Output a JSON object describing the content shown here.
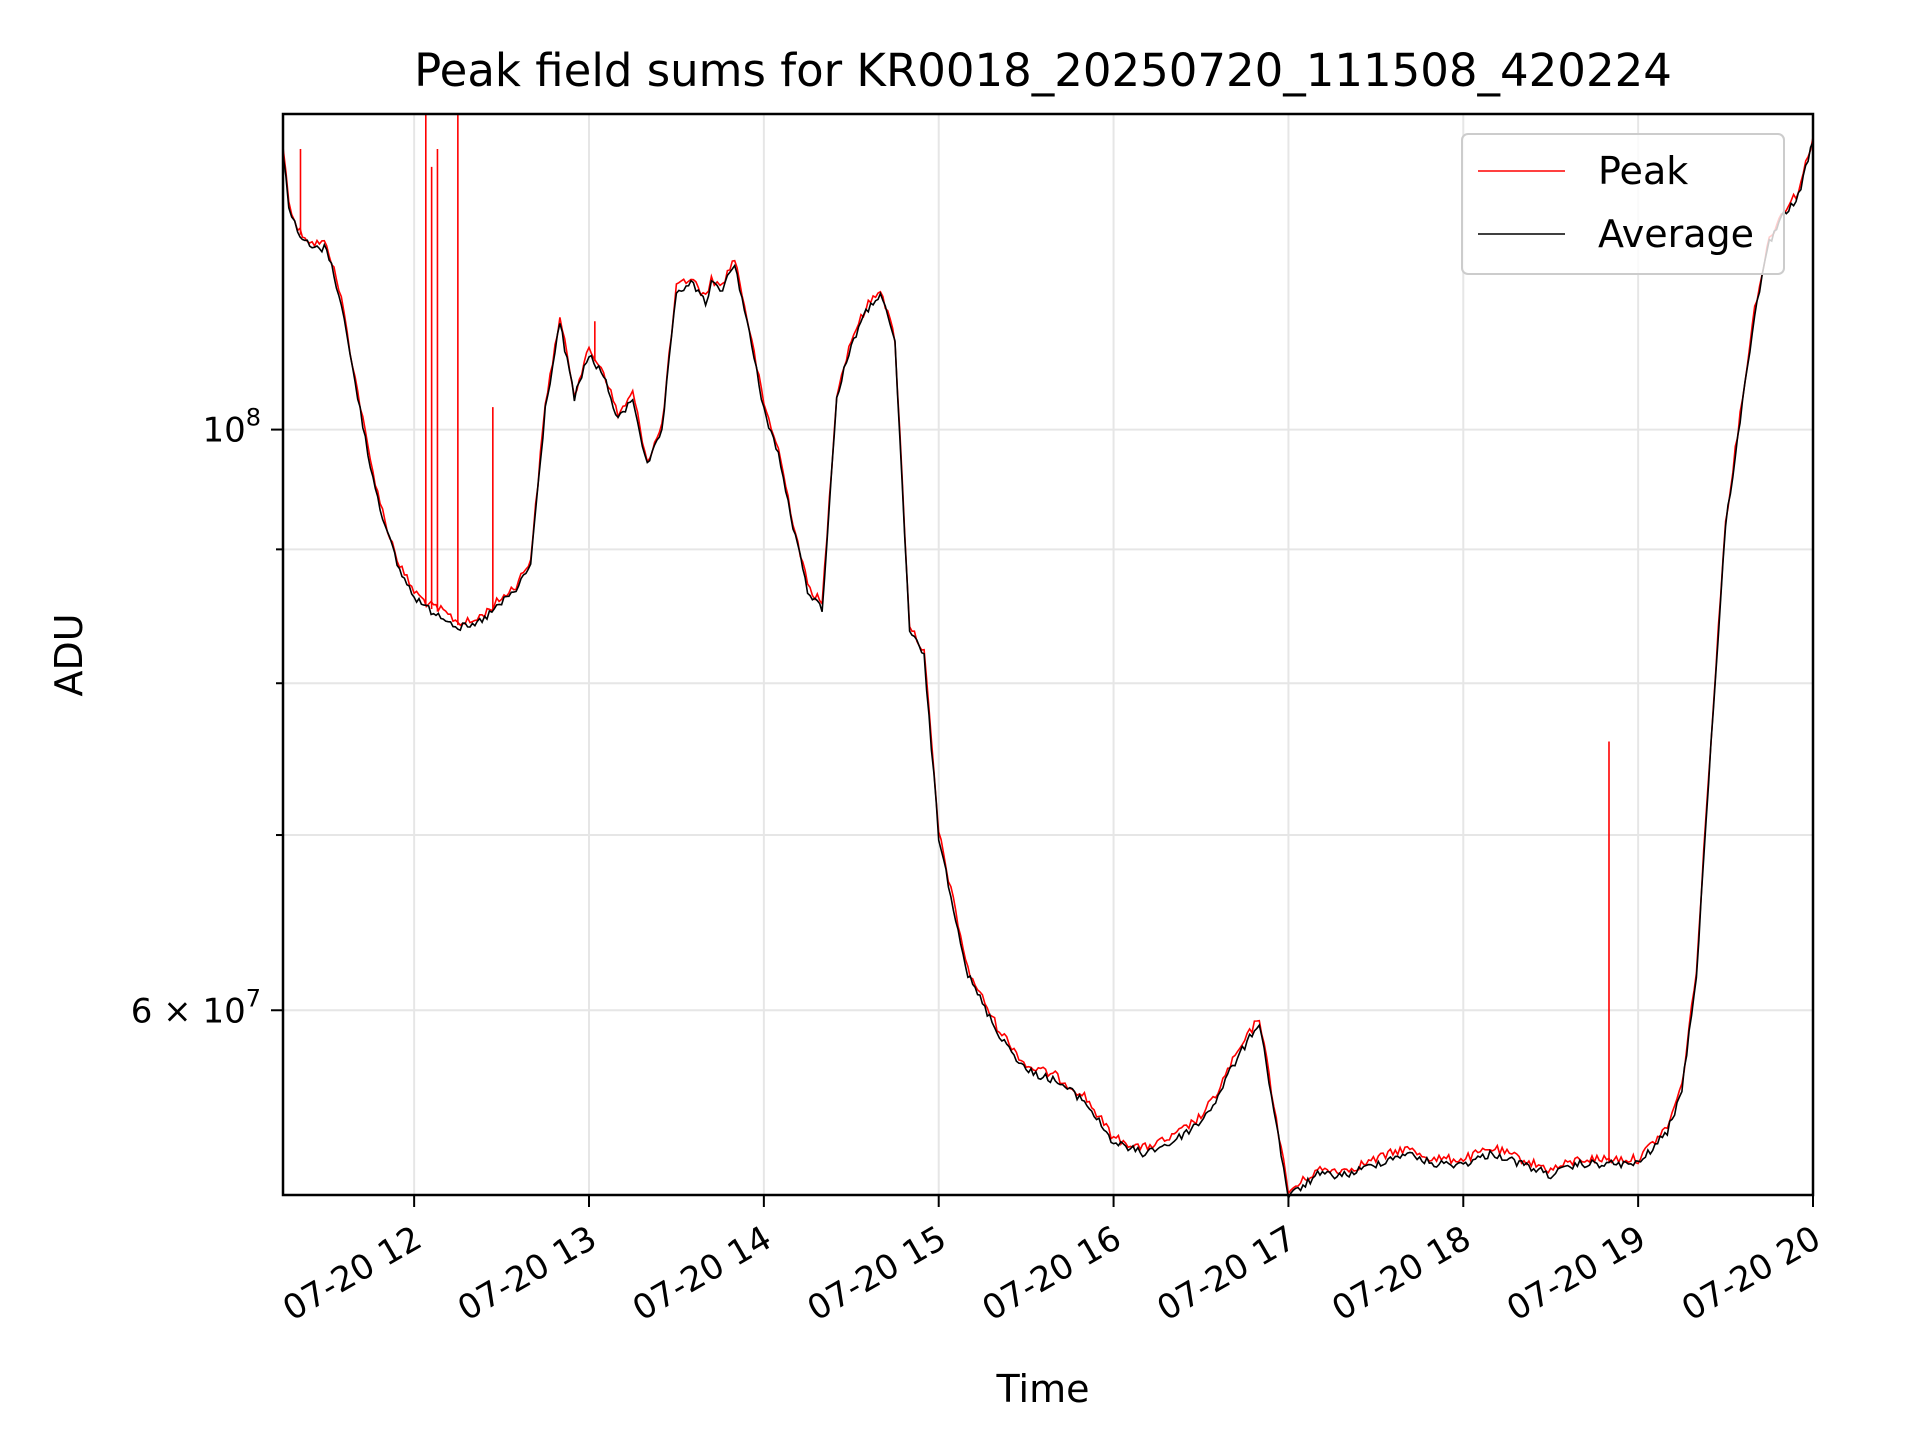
{
  "chart_data": {
    "type": "line",
    "title": "Peak field sums for KR0018_20250720_111508_420224",
    "xlabel": "Time",
    "ylabel": "ADU",
    "yscale": "log",
    "xlim": [
      "2025-07-20 11:15",
      "2025-07-20 20:00"
    ],
    "ylim": [
      51000000,
      132000000
    ],
    "grid": true,
    "legend_position": "top-right",
    "x_ticks": [
      {
        "value": "2025-07-20 12:00",
        "label": "07-20 12"
      },
      {
        "value": "2025-07-20 13:00",
        "label": "07-20 13"
      },
      {
        "value": "2025-07-20 14:00",
        "label": "07-20 14"
      },
      {
        "value": "2025-07-20 15:00",
        "label": "07-20 15"
      },
      {
        "value": "2025-07-20 16:00",
        "label": "07-20 16"
      },
      {
        "value": "2025-07-20 17:00",
        "label": "07-20 17"
      },
      {
        "value": "2025-07-20 18:00",
        "label": "07-20 18"
      },
      {
        "value": "2025-07-20 19:00",
        "label": "07-20 19"
      },
      {
        "value": "2025-07-20 20:00",
        "label": "07-20 20"
      }
    ],
    "y_ticks_major": [
      {
        "value": 100000000,
        "label_base": "10",
        "label_exp": "8"
      },
      {
        "value": 60000000,
        "label_base": "6 × 10",
        "label_exp": "7"
      }
    ],
    "y_ticks_minor": [
      70000000,
      80000000,
      90000000
    ],
    "series": [
      {
        "name": "Average",
        "color": "#000000",
        "x": [
          "2025-07-20 11:15",
          "2025-07-20 11:17",
          "2025-07-20 11:20",
          "2025-07-20 11:25",
          "2025-07-20 11:30",
          "2025-07-20 11:35",
          "2025-07-20 11:38",
          "2025-07-20 11:45",
          "2025-07-20 11:50",
          "2025-07-20 11:55",
          "2025-07-20 12:00",
          "2025-07-20 12:05",
          "2025-07-20 12:10",
          "2025-07-20 12:15",
          "2025-07-20 12:20",
          "2025-07-20 12:25",
          "2025-07-20 12:30",
          "2025-07-20 12:35",
          "2025-07-20 12:40",
          "2025-07-20 12:45",
          "2025-07-20 12:50",
          "2025-07-20 12:55",
          "2025-07-20 13:00",
          "2025-07-20 13:05",
          "2025-07-20 13:10",
          "2025-07-20 13:15",
          "2025-07-20 13:20",
          "2025-07-20 13:25",
          "2025-07-20 13:30",
          "2025-07-20 13:35",
          "2025-07-20 13:40",
          "2025-07-20 13:42",
          "2025-07-20 13:45",
          "2025-07-20 13:50",
          "2025-07-20 13:55",
          "2025-07-20 14:00",
          "2025-07-20 14:05",
          "2025-07-20 14:10",
          "2025-07-20 14:15",
          "2025-07-20 14:20",
          "2025-07-20 14:25",
          "2025-07-20 14:30",
          "2025-07-20 14:35",
          "2025-07-20 14:40",
          "2025-07-20 14:45",
          "2025-07-20 14:50",
          "2025-07-20 14:55",
          "2025-07-20 15:00",
          "2025-07-20 15:10",
          "2025-07-20 15:20",
          "2025-07-20 15:30",
          "2025-07-20 15:40",
          "2025-07-20 15:50",
          "2025-07-20 16:00",
          "2025-07-20 16:10",
          "2025-07-20 16:20",
          "2025-07-20 16:30",
          "2025-07-20 16:35",
          "2025-07-20 16:40",
          "2025-07-20 16:50",
          "2025-07-20 17:00",
          "2025-07-20 17:10",
          "2025-07-20 17:20",
          "2025-07-20 17:30",
          "2025-07-20 17:40",
          "2025-07-20 17:50",
          "2025-07-20 18:00",
          "2025-07-20 18:10",
          "2025-07-20 18:20",
          "2025-07-20 18:30",
          "2025-07-20 18:40",
          "2025-07-20 18:50",
          "2025-07-20 19:00",
          "2025-07-20 19:10",
          "2025-07-20 19:15",
          "2025-07-20 19:20",
          "2025-07-20 19:25",
          "2025-07-20 19:30",
          "2025-07-20 19:35",
          "2025-07-20 19:40",
          "2025-07-20 19:45",
          "2025-07-20 19:50",
          "2025-07-20 19:55",
          "2025-07-20 20:00"
        ],
        "y": [
          128000000,
          122000000,
          119000000,
          117500000,
          117500000,
          112000000,
          107000000,
          97000000,
          92000000,
          88500000,
          86500000,
          85500000,
          85000000,
          84200000,
          84200000,
          85000000,
          86000000,
          87000000,
          89000000,
          102000000,
          110000000,
          103000000,
          107000000,
          105000000,
          101000000,
          103000000,
          97000000,
          100000000,
          113000000,
          114000000,
          112000000,
          114000000,
          113000000,
          116000000,
          109000000,
          102000000,
          98000000,
          92000000,
          87000000,
          85500000,
          103000000,
          108000000,
          111000000,
          113000000,
          108000000,
          84000000,
          82000000,
          70000000,
          62000000,
          59000000,
          57000000,
          56500000,
          55500000,
          53500000,
          53000000,
          53500000,
          54500000,
          55500000,
          57000000,
          59500000,
          51000000,
          52000000,
          52000000,
          52500000,
          53000000,
          52500000,
          52500000,
          53000000,
          52500000,
          52000000,
          52500000,
          52500000,
          52500000,
          54000000,
          56000000,
          62000000,
          76000000,
          92000000,
          101000000,
          111000000,
          118000000,
          121000000,
          123000000,
          129000000
        ]
      },
      {
        "name": "Peak",
        "color": "#ff0000",
        "spikes": [
          {
            "x": "2025-07-20 11:21",
            "y": 128000000
          },
          {
            "x": "2025-07-20 12:04",
            "y": 132000000
          },
          {
            "x": "2025-07-20 12:06",
            "y": 126000000
          },
          {
            "x": "2025-07-20 12:08",
            "y": 128000000
          },
          {
            "x": "2025-07-20 12:15",
            "y": 132000000
          },
          {
            "x": "2025-07-20 12:27",
            "y": 102000000
          },
          {
            "x": "2025-07-20 13:02",
            "y": 110000000
          },
          {
            "x": "2025-07-20 18:50",
            "y": 76000000
          }
        ]
      }
    ]
  }
}
